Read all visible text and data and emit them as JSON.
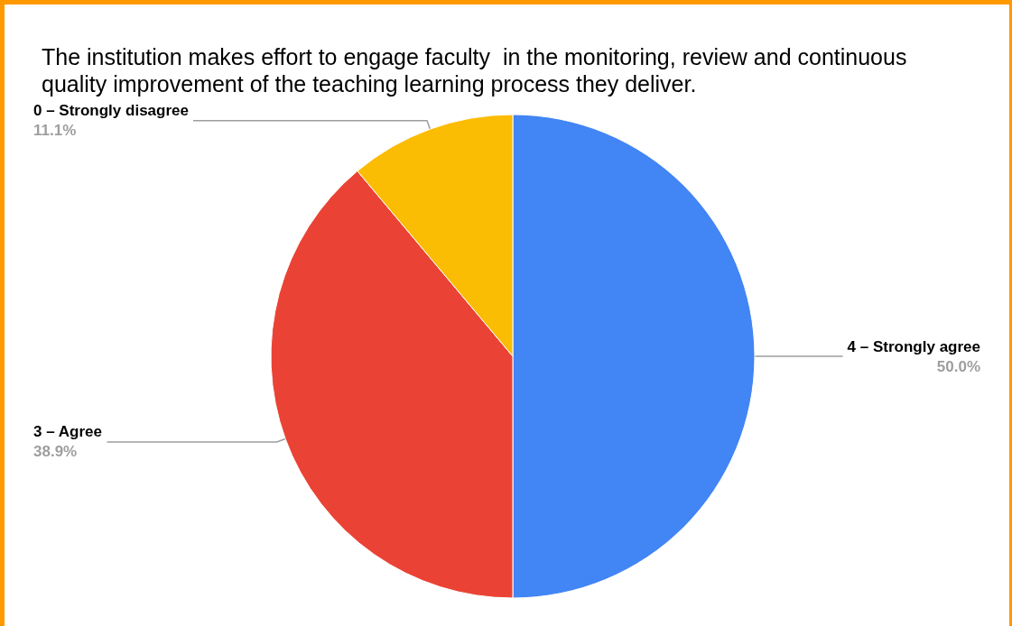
{
  "chart_data": {
    "type": "pie",
    "title": "The institution makes effort to engage faculty  in the monitoring, review and continuous quality improvement of the teaching learning process they deliver.",
    "categories": [
      "4 – Strongly agree",
      "3 – Agree",
      "0 – Strongly disagree"
    ],
    "values": [
      50.0,
      38.9,
      11.1
    ],
    "colors": [
      "#4285f4",
      "#ea4335",
      "#fbbc04"
    ],
    "value_labels": [
      "50.0%",
      "38.9%",
      "11.1%"
    ],
    "legend": false
  }
}
